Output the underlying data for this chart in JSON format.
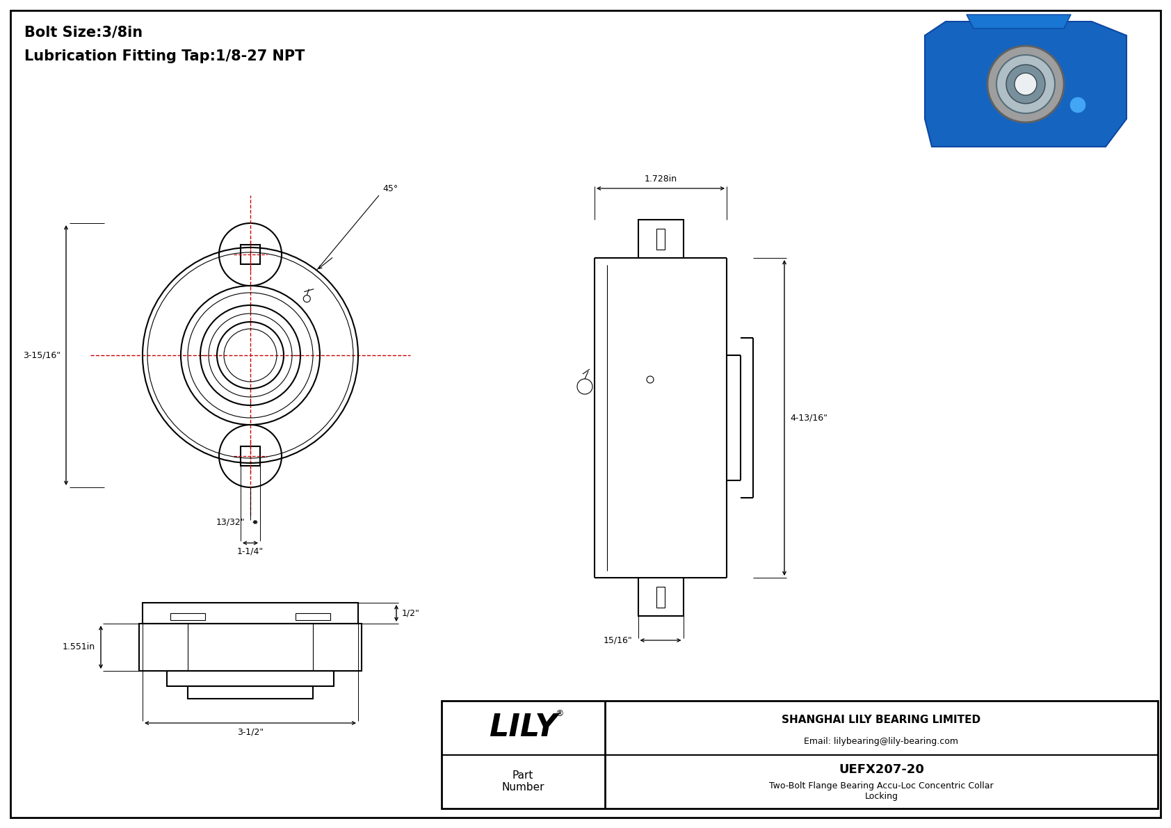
{
  "bg_color": "#ffffff",
  "line_color": "#000000",
  "red_line_color": "#cc0000",
  "title_line1": "Bolt Size:3/8in",
  "title_line2": "Lubrication Fitting Tap:1/8-27 NPT",
  "dim_45": "45°",
  "dim_3_15_16": "3-15/16\"",
  "dim_13_32": "13/32\"",
  "dim_1_1_4": "1-1/4\"",
  "dim_1_728": "1.728in",
  "dim_4_13_16": "4-13/16\"",
  "dim_15_16": "15/16\"",
  "dim_1_551": "1.551in",
  "dim_3_1_2": "3-1/2\"",
  "dim_1_2": "1/2\"",
  "company_name": "SHANGHAI LILY BEARING LIMITED",
  "company_email": "Email: lilybearing@lily-bearing.com",
  "logo_text": "LILY",
  "logo_reg": "®",
  "part_label": "Part\nNumber",
  "part_number": "UEFX207-20",
  "part_desc": "Two-Bolt Flange Bearing Accu-Loc Concentric Collar\nLocking"
}
